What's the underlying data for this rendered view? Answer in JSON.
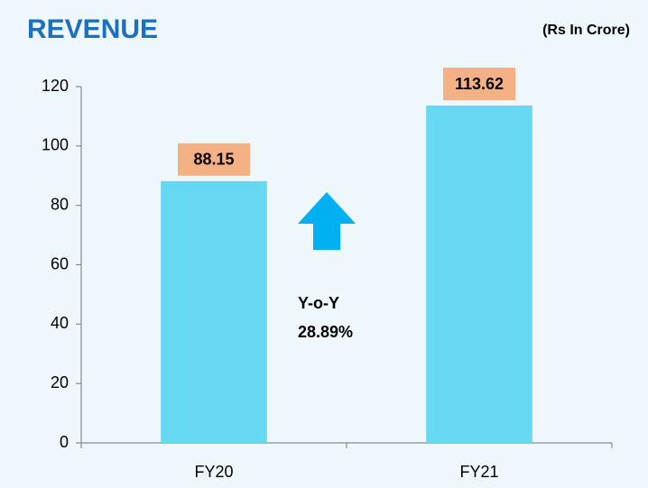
{
  "chart_data": {
    "type": "bar",
    "title": "REVENUE",
    "subtitle": "(Rs In Crore)",
    "categories": [
      "FY20",
      "FY21"
    ],
    "values": [
      88.15,
      113.62
    ],
    "color": "#66d8f2",
    "label_color": "#f5b183",
    "annotation": [
      "Y-o-Y",
      "28.89%"
    ],
    "ylim": [
      0,
      120
    ],
    "yticks": [
      0,
      20,
      40,
      60,
      80,
      100,
      120
    ],
    "grid": false
  }
}
